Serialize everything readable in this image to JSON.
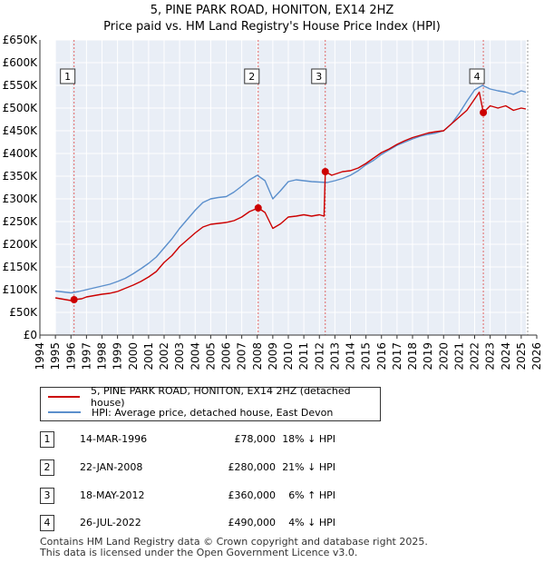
{
  "title_line1": "5, PINE PARK ROAD, HONITON, EX14 2HZ",
  "title_line2": "Price paid vs. HM Land Registry's House Price Index (HPI)",
  "chart_data": {
    "type": "line",
    "xlim": [
      1994,
      2026
    ],
    "ylim": [
      0,
      650000
    ],
    "y_ticks": [
      0,
      50000,
      100000,
      150000,
      200000,
      250000,
      300000,
      350000,
      400000,
      450000,
      500000,
      550000,
      600000,
      650000
    ],
    "y_tick_labels": [
      "£0",
      "£50K",
      "£100K",
      "£150K",
      "£200K",
      "£250K",
      "£300K",
      "£350K",
      "£400K",
      "£450K",
      "£500K",
      "£550K",
      "£600K",
      "£650K"
    ],
    "x_ticks": [
      1994,
      1995,
      1996,
      1997,
      1998,
      1999,
      2000,
      2001,
      2002,
      2003,
      2004,
      2005,
      2006,
      2007,
      2008,
      2009,
      2010,
      2011,
      2012,
      2013,
      2014,
      2015,
      2016,
      2017,
      2018,
      2019,
      2020,
      2021,
      2022,
      2023,
      2024,
      2025,
      2026
    ],
    "grid": true,
    "shaded_before": 1995,
    "shaded_after": 2025.3,
    "series": [
      {
        "name": "5, PINE PARK ROAD, HONITON, EX14 2HZ (detached house)",
        "color": "#cc0000",
        "points": [
          [
            1995.0,
            82000
          ],
          [
            1995.5,
            79000
          ],
          [
            1996.0,
            76000
          ],
          [
            1996.2,
            78000
          ],
          [
            1996.7,
            80000
          ],
          [
            1997.0,
            84000
          ],
          [
            1997.5,
            87000
          ],
          [
            1998.0,
            90000
          ],
          [
            1998.5,
            92000
          ],
          [
            1999.0,
            96000
          ],
          [
            1999.5,
            103000
          ],
          [
            2000.0,
            110000
          ],
          [
            2000.5,
            118000
          ],
          [
            2001.0,
            128000
          ],
          [
            2001.5,
            140000
          ],
          [
            2002.0,
            160000
          ],
          [
            2002.5,
            175000
          ],
          [
            2003.0,
            195000
          ],
          [
            2003.5,
            210000
          ],
          [
            2004.0,
            225000
          ],
          [
            2004.5,
            238000
          ],
          [
            2005.0,
            244000
          ],
          [
            2005.5,
            246000
          ],
          [
            2006.0,
            248000
          ],
          [
            2006.5,
            252000
          ],
          [
            2007.0,
            260000
          ],
          [
            2007.5,
            272000
          ],
          [
            2008.06,
            280000
          ],
          [
            2008.5,
            270000
          ],
          [
            2009.0,
            235000
          ],
          [
            2009.5,
            245000
          ],
          [
            2010.0,
            260000
          ],
          [
            2010.5,
            262000
          ],
          [
            2011.0,
            265000
          ],
          [
            2011.5,
            262000
          ],
          [
            2012.0,
            265000
          ],
          [
            2012.3,
            262000
          ],
          [
            2012.38,
            360000
          ],
          [
            2012.8,
            352000
          ],
          [
            2013.5,
            360000
          ],
          [
            2014.0,
            362000
          ],
          [
            2014.5,
            368000
          ],
          [
            2015.0,
            378000
          ],
          [
            2015.5,
            390000
          ],
          [
            2016.0,
            402000
          ],
          [
            2016.5,
            410000
          ],
          [
            2017.0,
            420000
          ],
          [
            2017.5,
            428000
          ],
          [
            2018.0,
            435000
          ],
          [
            2018.5,
            440000
          ],
          [
            2019.0,
            445000
          ],
          [
            2019.5,
            448000
          ],
          [
            2020.0,
            450000
          ],
          [
            2020.5,
            465000
          ],
          [
            2021.0,
            480000
          ],
          [
            2021.5,
            495000
          ],
          [
            2022.0,
            520000
          ],
          [
            2022.3,
            535000
          ],
          [
            2022.56,
            490000
          ],
          [
            2023.0,
            505000
          ],
          [
            2023.5,
            500000
          ],
          [
            2024.0,
            505000
          ],
          [
            2024.5,
            495000
          ],
          [
            2025.0,
            500000
          ],
          [
            2025.3,
            498000
          ]
        ]
      },
      {
        "name": "HPI: Average price, detached house, East Devon",
        "color": "#5b8fcc",
        "points": [
          [
            1995.0,
            97000
          ],
          [
            1995.5,
            95000
          ],
          [
            1996.0,
            93000
          ],
          [
            1996.5,
            96000
          ],
          [
            1997.0,
            100000
          ],
          [
            1997.5,
            104000
          ],
          [
            1998.0,
            108000
          ],
          [
            1998.5,
            112000
          ],
          [
            1999.0,
            118000
          ],
          [
            1999.5,
            125000
          ],
          [
            2000.0,
            135000
          ],
          [
            2000.5,
            146000
          ],
          [
            2001.0,
            158000
          ],
          [
            2001.5,
            172000
          ],
          [
            2002.0,
            192000
          ],
          [
            2002.5,
            212000
          ],
          [
            2003.0,
            235000
          ],
          [
            2003.5,
            255000
          ],
          [
            2004.0,
            275000
          ],
          [
            2004.5,
            292000
          ],
          [
            2005.0,
            300000
          ],
          [
            2005.5,
            303000
          ],
          [
            2006.0,
            305000
          ],
          [
            2006.5,
            315000
          ],
          [
            2007.0,
            328000
          ],
          [
            2007.5,
            342000
          ],
          [
            2008.0,
            352000
          ],
          [
            2008.5,
            340000
          ],
          [
            2009.0,
            300000
          ],
          [
            2009.5,
            318000
          ],
          [
            2010.0,
            338000
          ],
          [
            2010.5,
            342000
          ],
          [
            2011.0,
            340000
          ],
          [
            2011.5,
            338000
          ],
          [
            2012.0,
            337000
          ],
          [
            2012.5,
            336000
          ],
          [
            2013.0,
            340000
          ],
          [
            2013.5,
            345000
          ],
          [
            2014.0,
            352000
          ],
          [
            2014.5,
            362000
          ],
          [
            2015.0,
            375000
          ],
          [
            2015.5,
            385000
          ],
          [
            2016.0,
            398000
          ],
          [
            2016.5,
            408000
          ],
          [
            2017.0,
            418000
          ],
          [
            2017.5,
            425000
          ],
          [
            2018.0,
            432000
          ],
          [
            2018.5,
            438000
          ],
          [
            2019.0,
            442000
          ],
          [
            2019.5,
            445000
          ],
          [
            2020.0,
            450000
          ],
          [
            2020.5,
            465000
          ],
          [
            2021.0,
            488000
          ],
          [
            2021.5,
            515000
          ],
          [
            2022.0,
            540000
          ],
          [
            2022.5,
            550000
          ],
          [
            2023.0,
            542000
          ],
          [
            2023.5,
            538000
          ],
          [
            2024.0,
            535000
          ],
          [
            2024.5,
            530000
          ],
          [
            2025.0,
            538000
          ],
          [
            2025.3,
            535000
          ]
        ]
      }
    ],
    "sales": [
      {
        "marker": "1",
        "x": 1996.2,
        "price": 78000
      },
      {
        "marker": "2",
        "x": 2008.06,
        "price": 280000
      },
      {
        "marker": "3",
        "x": 2012.38,
        "price": 360000
      },
      {
        "marker": "4",
        "x": 2022.56,
        "price": 490000
      }
    ]
  },
  "legend": {
    "entry1": "5, PINE PARK ROAD, HONITON, EX14 2HZ (detached house)",
    "entry2": "HPI: Average price, detached house, East Devon",
    "color1": "#cc0000",
    "color2": "#5b8fcc"
  },
  "transactions": [
    {
      "marker": "1",
      "date": "14-MAR-1996",
      "price": "£78,000",
      "hpi": "18% ↓ HPI"
    },
    {
      "marker": "2",
      "date": "22-JAN-2008",
      "price": "£280,000",
      "hpi": "21% ↓ HPI"
    },
    {
      "marker": "3",
      "date": "18-MAY-2012",
      "price": "£360,000",
      "hpi": "6% ↑ HPI"
    },
    {
      "marker": "4",
      "date": "26-JUL-2022",
      "price": "£490,000",
      "hpi": "4% ↓ HPI"
    }
  ],
  "footer_line1": "Contains HM Land Registry data © Crown copyright and database right 2025.",
  "footer_line2": "This data is licensed under the Open Government Licence v3.0."
}
